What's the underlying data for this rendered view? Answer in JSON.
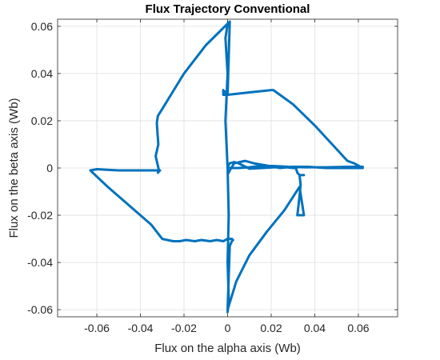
{
  "chart_data": {
    "type": "line",
    "title": "Flux Trajectory Conventional",
    "xlabel": "Flux on the alpha axis (Wb)",
    "ylabel": "Flux on the beta axis (Wb)",
    "xlim": [
      -0.078,
      0.078
    ],
    "ylim": [
      -0.063,
      0.063
    ],
    "xticks": [
      -0.06,
      -0.04,
      -0.02,
      0,
      0.02,
      0.04,
      0.06
    ],
    "yticks": [
      -0.06,
      -0.04,
      -0.02,
      0,
      0.02,
      0.04,
      0.06
    ],
    "xtick_labels": [
      "-0.06",
      "-0.04",
      "-0.02",
      "0",
      "0.02",
      "0.04",
      "0.06"
    ],
    "ytick_labels": [
      "-0.06",
      "-0.04",
      "-0.02",
      "0",
      "0.02",
      "0.04",
      "0.06"
    ],
    "grid": true,
    "series": [
      {
        "color": "#0072BD",
        "x": [
          0.0005,
          0.001,
          0.003,
          0.008,
          0.012,
          0.018,
          0.024,
          0.03,
          0.037,
          0.045,
          0.055,
          0.062,
          0.058,
          0.055,
          0.05,
          0.04,
          0.03,
          0.021,
          0.02,
          0.01,
          0.0,
          -0.002,
          -0.002,
          0.0,
          0.001,
          -0.01,
          -0.02,
          -0.03,
          -0.032,
          -0.0325,
          -0.0318,
          -0.033,
          -0.0315,
          -0.032,
          -0.031,
          -0.04,
          -0.05,
          -0.06,
          -0.063,
          -0.055,
          -0.045,
          -0.035,
          -0.03,
          -0.025,
          -0.022,
          -0.019,
          -0.015,
          -0.012,
          -0.008,
          -0.005,
          -0.002,
          0.0,
          0.002,
          0.0025,
          0.002,
          0.001,
          0.0,
          0.001,
          0.004,
          0.01,
          0.018,
          0.026,
          0.033,
          0.035,
          0.032,
          0.033,
          0.0335,
          0.033,
          0.034,
          0.035,
          0.033,
          0.032,
          0.0315,
          0.031,
          0.03,
          0.025,
          0.02,
          0.01,
          0.005,
          0.003,
          0.001,
          0.0,
          0.001,
          0.005,
          0.01,
          0.016,
          0.022,
          0.028,
          0.035,
          0.045,
          0.055,
          0.06,
          0.062
        ],
        "y": [
          -0.002,
          -0.001,
          0.002,
          0.003,
          0.002,
          0.001,
          0.0,
          0.0005,
          0.0005,
          0.0,
          0.0,
          0.0,
          0.002,
          0.003,
          0.008,
          0.018,
          0.027,
          0.033,
          0.033,
          0.032,
          0.031,
          0.031,
          0.033,
          0.031,
          0.062,
          0.052,
          0.04,
          0.025,
          0.022,
          0.019,
          0.01,
          0.005,
          -0.001,
          -0.002,
          -0.001,
          -0.001,
          -0.001,
          -0.0005,
          -0.001,
          -0.008,
          -0.016,
          -0.024,
          -0.03,
          -0.031,
          -0.031,
          -0.0305,
          -0.031,
          -0.0305,
          -0.031,
          -0.0305,
          -0.031,
          -0.03,
          -0.03,
          -0.0305,
          -0.031,
          -0.033,
          -0.06,
          -0.057,
          -0.048,
          -0.037,
          -0.027,
          -0.018,
          -0.008,
          -0.02,
          -0.02,
          -0.012,
          -0.007,
          -0.003,
          -0.003,
          -0.003,
          -0.003,
          -0.002,
          -0.0005,
          0.0,
          0.0,
          0.0005,
          0.0002,
          -0.0003,
          0.002,
          0.0025,
          0.002,
          0.0005,
          0.0,
          0.0,
          0.0003,
          0.001,
          0.0008,
          0.0005,
          0.0003,
          0.0003,
          0.0005,
          0.0005,
          0.0005
        ]
      },
      {
        "color": "#0072BD",
        "x": [
          0.0,
          -0.001,
          0.0,
          -0.001,
          0.0
        ],
        "y": [
          0.0,
          0.02,
          0.04,
          0.055,
          0.061
        ]
      },
      {
        "color": "#0072BD",
        "x": [
          0.0,
          0.0005,
          0.0,
          0.0005,
          0.0
        ],
        "y": [
          0.0,
          -0.02,
          -0.04,
          -0.055,
          -0.061
        ]
      }
    ]
  }
}
